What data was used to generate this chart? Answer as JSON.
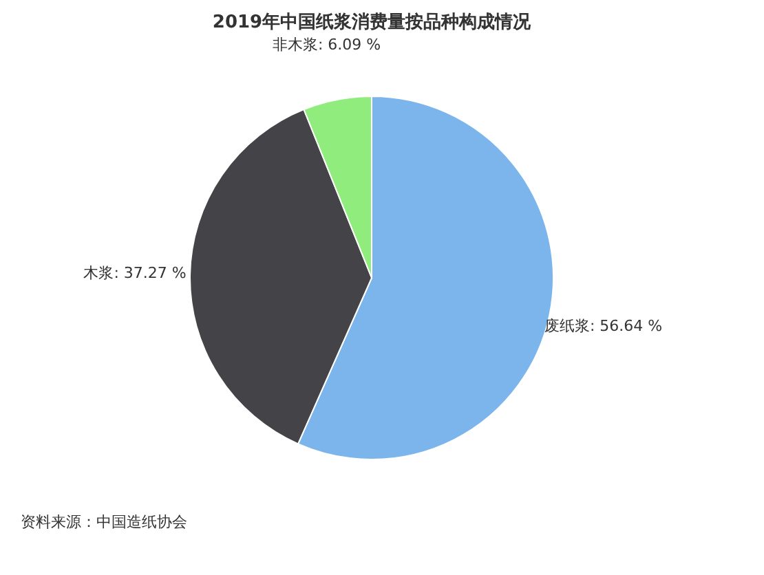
{
  "chart_data": {
    "type": "pie",
    "title": "2019年中国纸浆消费量按品种构成情况",
    "categories": [
      "废纸浆",
      "木浆",
      "非木浆"
    ],
    "values": [
      56.64,
      37.27,
      6.09
    ],
    "colors": [
      "#7cb5ec",
      "#434348",
      "#90ed7d"
    ],
    "value_labels": [
      "56.64 %",
      "37.27 %",
      "6.09 %"
    ],
    "legend": false,
    "annotations": [
      "资料来源：中国造纸协会"
    ]
  }
}
